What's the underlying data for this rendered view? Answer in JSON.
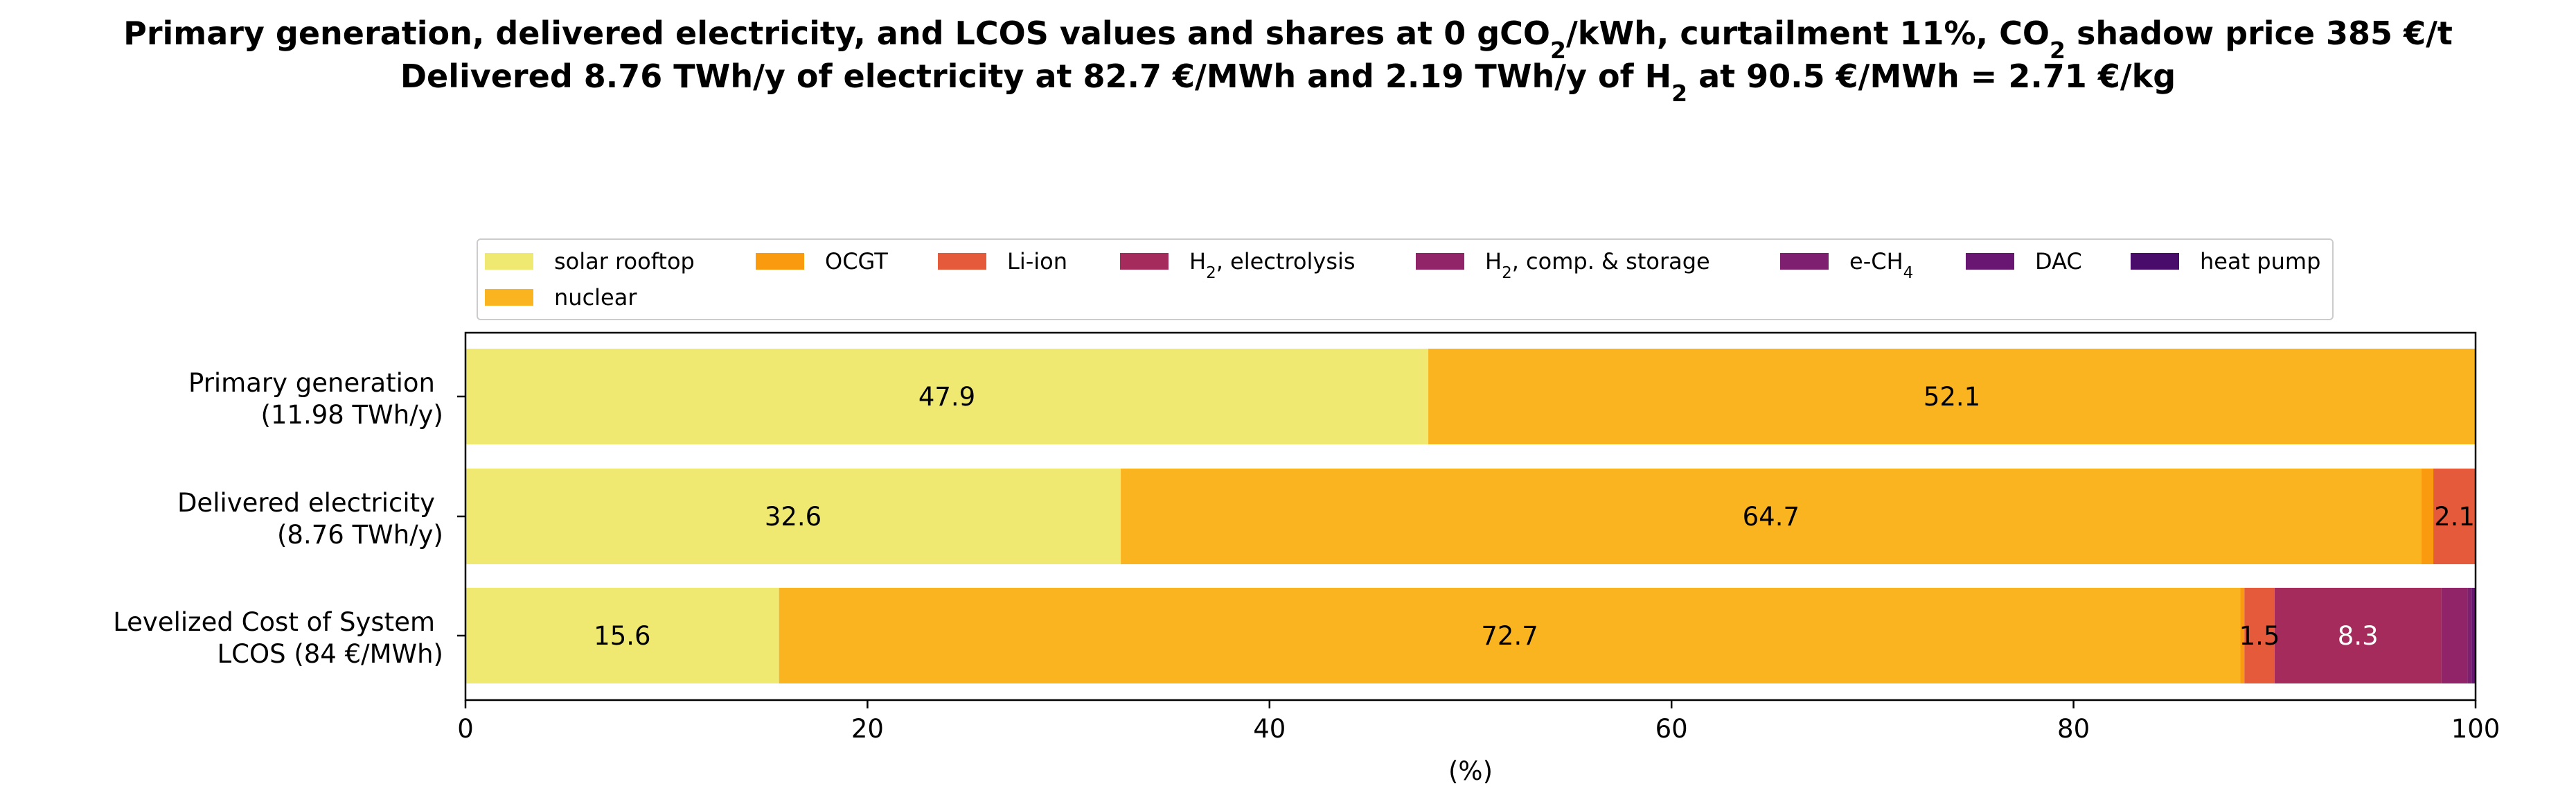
{
  "chart_data": {
    "type": "bar",
    "orientation": "horizontal",
    "stacked": true,
    "title_lines": [
      {
        "parts": [
          {
            "t": "Primary generation, delivered electricity, and LCOS values and shares at 0 gCO"
          },
          {
            "t": "2",
            "sub": true
          },
          {
            "t": "/kWh, curtailment 11%, CO"
          },
          {
            "t": "2",
            "sub": true
          },
          {
            "t": " shadow price 385 €/t"
          }
        ]
      },
      {
        "parts": [
          {
            "t": "Delivered 8.76 TWh/y of electricity at 82.7 €/MWh and 2.19 TWh/y of H"
          },
          {
            "t": "2",
            "sub": true
          },
          {
            "t": " at 90.5 €/MWh = 2.71 €/kg"
          }
        ]
      }
    ],
    "xlabel": "(%)",
    "xlim": [
      0,
      100
    ],
    "xticks": [
      0,
      20,
      40,
      60,
      80,
      100
    ],
    "grid": false,
    "legend_placement": "top, above plot, 8 columns",
    "categories": [
      {
        "line1": "Primary generation",
        "line2": "(11.98 TWh/y)"
      },
      {
        "line1": "Delivered electricity",
        "line2": "(8.76 TWh/y)"
      },
      {
        "line1": "Levelized Cost of System",
        "line2": "LCOS  (84 €/MWh)"
      }
    ],
    "series": [
      {
        "name": "solar rooftop",
        "name_parts": [
          {
            "t": "solar rooftop"
          }
        ],
        "color": "#f0e971",
        "values": [
          47.9,
          32.6,
          15.6
        ],
        "labels": [
          "47.9",
          "32.6",
          "15.6"
        ],
        "label_color": "#000000"
      },
      {
        "name": "nuclear",
        "name_parts": [
          {
            "t": "nuclear"
          }
        ],
        "color": "#f9b41f",
        "values": [
          52.1,
          64.7,
          72.7
        ],
        "labels": [
          "52.1",
          "64.7",
          "72.7"
        ],
        "label_color": "#000000"
      },
      {
        "name": "OCGT",
        "name_parts": [
          {
            "t": "OCGT"
          }
        ],
        "color": "#fa9a0e",
        "values": [
          0,
          0.6,
          0.2
        ],
        "labels": [
          "",
          "",
          ""
        ],
        "label_color": "#000000"
      },
      {
        "name": "Li-ion",
        "name_parts": [
          {
            "t": "Li-ion"
          }
        ],
        "color": "#e45a3a",
        "values": [
          0,
          2.1,
          1.5
        ],
        "labels": [
          "",
          "2.1",
          "1.5"
        ],
        "label_color": "#000000"
      },
      {
        "name": "H2, electrolysis",
        "name_parts": [
          {
            "t": "H"
          },
          {
            "t": "2",
            "sub": true
          },
          {
            "t": ", electrolysis"
          }
        ],
        "color": "#a62b5d",
        "values": [
          0,
          0,
          8.3
        ],
        "labels": [
          "",
          "",
          "8.3"
        ],
        "label_color": "#ffffff"
      },
      {
        "name": "H2, comp. & storage",
        "name_parts": [
          {
            "t": "H"
          },
          {
            "t": "2",
            "sub": true
          },
          {
            "t": ", comp. & storage"
          }
        ],
        "color": "#912468",
        "values": [
          0,
          0,
          1.3
        ],
        "labels": [
          "",
          "",
          ""
        ],
        "label_color": "#ffffff"
      },
      {
        "name": "e-CH4",
        "name_parts": [
          {
            "t": "e-CH"
          },
          {
            "t": "4",
            "sub": true
          }
        ],
        "color": "#7e1f6f",
        "values": [
          0,
          0,
          0.2
        ],
        "labels": [
          "",
          "",
          ""
        ],
        "label_color": "#ffffff"
      },
      {
        "name": "DAC",
        "name_parts": [
          {
            "t": "DAC"
          }
        ],
        "color": "#691672",
        "values": [
          0,
          0,
          0.2
        ],
        "labels": [
          "",
          "",
          ""
        ],
        "label_color": "#ffffff"
      },
      {
        "name": "heat pump",
        "name_parts": [
          {
            "t": "heat pump"
          }
        ],
        "color": "#4a0c6b",
        "values": [
          0,
          0,
          0
        ],
        "labels": [
          "",
          "",
          ""
        ],
        "label_color": "#ffffff"
      }
    ],
    "legend_order": [
      0,
      2,
      3,
      4,
      5,
      6,
      7,
      8,
      1
    ]
  }
}
